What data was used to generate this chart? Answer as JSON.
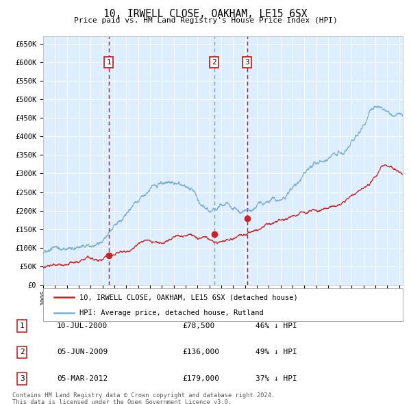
{
  "title": "10, IRWELL CLOSE, OAKHAM, LE15 6SX",
  "subtitle": "Price paid vs. HM Land Registry's House Price Index (HPI)",
  "ylim": [
    0,
    670000
  ],
  "yticks": [
    0,
    50000,
    100000,
    150000,
    200000,
    250000,
    300000,
    350000,
    400000,
    450000,
    500000,
    550000,
    600000,
    650000
  ],
  "ytick_labels": [
    "£0",
    "£50K",
    "£100K",
    "£150K",
    "£200K",
    "£250K",
    "£300K",
    "£350K",
    "£400K",
    "£450K",
    "£500K",
    "£550K",
    "£600K",
    "£650K"
  ],
  "hpi_color": "#7aadd4",
  "price_color": "#cc2222",
  "sale_marker_color": "#cc2222",
  "background_color": "#ddeeff",
  "sale1_date_num": 2000.52,
  "sale1_price": 78500,
  "sale1_vcolor": "#dd0000",
  "sale2_date_num": 2009.42,
  "sale2_price": 136000,
  "sale2_vcolor": "#999999",
  "sale3_date_num": 2012.17,
  "sale3_price": 179000,
  "sale3_vcolor": "#dd0000",
  "legend_line1": "10, IRWELL CLOSE, OAKHAM, LE15 6SX (detached house)",
  "legend_line2": "HPI: Average price, detached house, Rutland",
  "table_rows": [
    {
      "num": "1",
      "date": "10-JUL-2000",
      "price": "£78,500",
      "hpi": "46% ↓ HPI"
    },
    {
      "num": "2",
      "date": "05-JUN-2009",
      "price": "£136,000",
      "hpi": "49% ↓ HPI"
    },
    {
      "num": "3",
      "date": "05-MAR-2012",
      "price": "£179,000",
      "hpi": "37% ↓ HPI"
    }
  ],
  "footnote1": "Contains HM Land Registry data © Crown copyright and database right 2024.",
  "footnote2": "This data is licensed under the Open Government Licence v3.0.",
  "xstart": 1995.0,
  "xend": 2025.3,
  "n_points": 2000
}
